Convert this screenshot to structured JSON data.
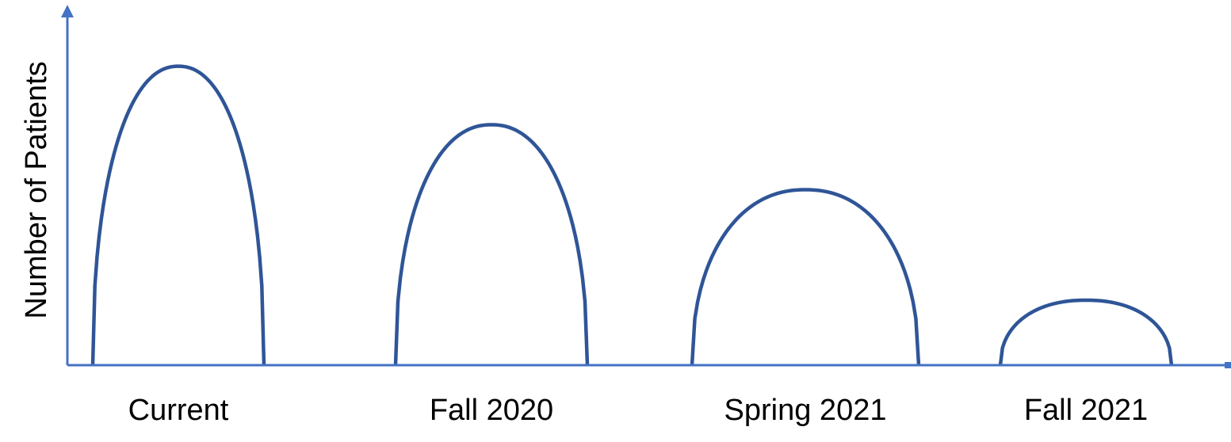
{
  "chart_data": {
    "type": "area",
    "ylabel": "Number of Patients",
    "categories": [
      "Current",
      "Fall 2020",
      "Spring 2021",
      "Fall 2021"
    ],
    "values": [
      92,
      74,
      54,
      20
    ],
    "ylim": [
      0,
      108
    ],
    "grid": false,
    "axis_color": "#4472C4",
    "curve_color": "#2F5597"
  }
}
